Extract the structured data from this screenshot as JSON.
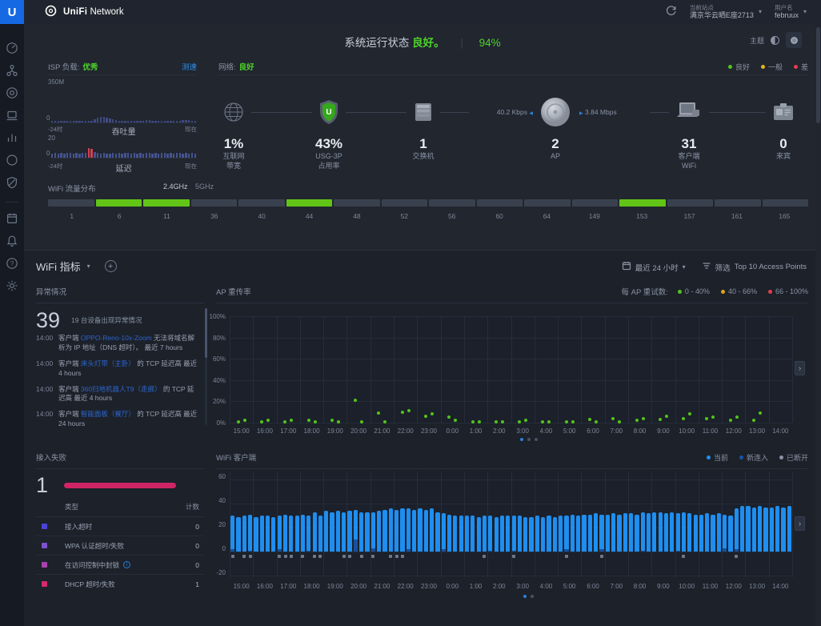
{
  "app": {
    "brand_unifi": "UniFi",
    "brand_network": "Network",
    "site_label": "当前站点",
    "site_value": "满京华云晒E座2713",
    "user_label": "用户名",
    "user_value": "februux"
  },
  "status": {
    "title_prefix": "系统运行状态",
    "title_status": "良好。",
    "score": "94%",
    "theme_label": "主题",
    "isp": {
      "label": "ISP 负载:",
      "value": "优秀",
      "speedtest": "测速",
      "axis_max": "350M",
      "axis_zero": "0",
      "throughput_caption": "吞吐量",
      "latency_axis_max": "20",
      "latency_axis_zero": "0",
      "latency_caption": "延迟",
      "time_start": "-24时",
      "time_end": "现在"
    },
    "network": {
      "label": "网络:",
      "value": "良好",
      "legend": [
        {
          "label": "良好",
          "color": "#52c41a"
        },
        {
          "label": "一般",
          "color": "#e0b61c"
        },
        {
          "label": "差",
          "color": "#e83c50"
        }
      ]
    },
    "nodes": [
      {
        "value": "1%",
        "line1": "互联网",
        "line2": "带宽"
      },
      {
        "value": "43%",
        "line1": "USG-3P",
        "line2": "占用率"
      },
      {
        "value": "1",
        "line1": "交换机",
        "line2": ""
      },
      {
        "value": "2",
        "line1": "AP",
        "line2": ""
      },
      {
        "value": "31",
        "line1": "客户端",
        "line2": "WiFi"
      },
      {
        "value": "0",
        "line1": "来宾",
        "line2": ""
      }
    ],
    "ap_rates": {
      "down": "40.2 Kbps",
      "up": "3.84 Mbps"
    },
    "wifi_dist": {
      "label": "WiFi 流量分布",
      "band24": "2.4GHz",
      "band5": "5GHz",
      "green_color": "#62c416",
      "gray_color": "#3a414e",
      "channels": [
        {
          "ch": "1",
          "green": false
        },
        {
          "ch": "6",
          "green": true
        },
        {
          "ch": "11",
          "green": true
        },
        {
          "ch": "36",
          "green": false
        },
        {
          "ch": "40",
          "green": false
        },
        {
          "ch": "44",
          "green": true
        },
        {
          "ch": "48",
          "green": false
        },
        {
          "ch": "52",
          "green": false
        },
        {
          "ch": "56",
          "green": false
        },
        {
          "ch": "60",
          "green": false
        },
        {
          "ch": "64",
          "green": false
        },
        {
          "ch": "149",
          "green": false
        },
        {
          "ch": "153",
          "green": true
        },
        {
          "ch": "157",
          "green": false
        },
        {
          "ch": "161",
          "green": false
        },
        {
          "ch": "165",
          "green": false
        }
      ]
    }
  },
  "metrics": {
    "title": "WiFi 指标",
    "time_range": "最近 24 小时",
    "filter_label": "筛选",
    "filter_value": "Top 10 Access Points",
    "anomalies": {
      "title": "异常情况",
      "count": "39",
      "caption": "19 台设备出现异常情况",
      "items": [
        {
          "time": "14:00",
          "parts": [
            {
              "t": "客户端 "
            },
            {
              "t": "OPPO-Reno-10x-Zoom",
              "link": true
            },
            {
              "t": " 无法将域名解析为 IP 地址（DNS 超时）。 最近 7 hours"
            }
          ]
        },
        {
          "time": "14:00",
          "parts": [
            {
              "t": "客户端 "
            },
            {
              "t": "床头灯带（主卧）",
              "link": true
            },
            {
              "t": " 的 TCP 延迟高 最近 4 hours"
            }
          ]
        },
        {
          "time": "14:00",
          "parts": [
            {
              "t": "客户端 "
            },
            {
              "t": "360扫地机器人T9（走廊）",
              "link": true
            },
            {
              "t": " 的 TCP 延迟高 最近 4 hours"
            }
          ]
        },
        {
          "time": "14:00",
          "parts": [
            {
              "t": "客户端 "
            },
            {
              "t": "智能面板（餐厅）",
              "link": true
            },
            {
              "t": " 的 TCP 延迟高 最近 24 hours"
            }
          ]
        }
      ]
    },
    "failures": {
      "title": "接入失败",
      "count": "1",
      "col_type": "类型",
      "col_count": "计数",
      "bar_color": "#cf2566",
      "rows": [
        {
          "color": "#4a43d8",
          "label": "接入超时",
          "count": "0",
          "info": false
        },
        {
          "color": "#7b52cc",
          "label": "WPA 认证超时/失败",
          "count": "0",
          "info": false
        },
        {
          "color": "#a843ae",
          "label": "在访问控制中封锁",
          "count": "0",
          "info": true
        },
        {
          "color": "#d62a6e",
          "label": "DHCP 超时/失败",
          "count": "1",
          "info": false
        }
      ]
    },
    "retry": {
      "title": "AP 重传率",
      "legend_label": "每 AP 重试数:",
      "legend": [
        {
          "label": "0 - 40%",
          "color": "#52c41a"
        },
        {
          "label": "40 - 66%",
          "color": "#e0a51c"
        },
        {
          "label": "66 - 100%",
          "color": "#e83c50"
        }
      ]
    },
    "clients": {
      "title": "WiFi 客户端",
      "legend": [
        {
          "label": "当前",
          "color": "#1e8ef0"
        },
        {
          "label": "新连入",
          "color": "#1853a8"
        },
        {
          "label": "已断开",
          "color": "#8a93a5"
        }
      ]
    }
  },
  "chart_data": [
    {
      "type": "bar",
      "name": "isp_throughput_sparkline",
      "ylabel": "350M max",
      "values_pct": [
        4,
        4,
        4,
        4,
        4,
        4,
        4,
        4,
        4,
        4,
        4,
        4,
        4,
        4,
        9,
        13,
        16,
        15,
        13,
        11,
        8,
        6,
        4,
        4,
        4,
        4,
        4,
        4,
        4,
        4,
        5,
        7,
        6,
        4,
        4,
        4,
        4,
        4,
        4,
        4,
        4,
        4,
        5,
        7,
        7,
        6,
        4,
        4
      ],
      "color": "#3f4a85"
    },
    {
      "type": "bar",
      "name": "isp_latency_sparkline",
      "ymax": 20,
      "red_threshold": 10,
      "values": [
        5,
        6,
        5,
        6,
        5,
        6,
        6,
        5,
        6,
        5,
        6,
        6,
        13,
        12,
        7,
        6,
        5,
        6,
        5,
        5,
        6,
        5,
        6,
        5,
        6,
        6,
        5,
        6,
        5,
        6,
        5,
        6,
        6,
        5,
        6,
        5,
        6,
        6,
        5,
        6,
        5,
        6,
        6,
        5,
        6,
        5,
        6,
        5
      ],
      "color": "#475390",
      "red_color": "#d6404e"
    },
    {
      "type": "scatter",
      "name": "ap_retry_rate",
      "ylim": [
        0,
        100
      ],
      "ylabels": [
        "100%",
        "80%",
        "60%",
        "40%",
        "20%",
        "0%"
      ],
      "hours": [
        "15:00",
        "16:00",
        "17:00",
        "18:00",
        "19:00",
        "20:00",
        "21:00",
        "22:00",
        "23:00",
        "0:00",
        "1:00",
        "2:00",
        "3:00",
        "4:00",
        "5:00",
        "6:00",
        "7:00",
        "8:00",
        "9:00",
        "10:00",
        "11:00",
        "12:00",
        "13:00",
        "14:00"
      ],
      "pairs": [
        [
          1,
          2
        ],
        [
          1,
          2
        ],
        [
          1,
          2
        ],
        [
          2,
          1
        ],
        [
          2,
          1
        ],
        [
          21,
          1
        ],
        [
          9,
          1
        ],
        [
          10,
          11
        ],
        [
          6,
          8
        ],
        [
          5,
          2
        ],
        [
          1,
          1
        ],
        [
          1,
          1
        ],
        [
          1,
          2
        ],
        [
          1,
          1
        ],
        [
          1,
          1
        ],
        [
          3,
          1
        ],
        [
          4,
          1
        ],
        [
          2,
          4
        ],
        [
          3,
          6
        ],
        [
          4,
          8
        ],
        [
          4,
          5
        ],
        [
          2,
          5
        ],
        [
          2,
          9
        ],
        []
      ],
      "dot_color": "#52c41a"
    },
    {
      "type": "bar",
      "name": "wifi_clients_per_15min",
      "ylim": [
        -20,
        60
      ],
      "ylabels": [
        "60",
        "40",
        "20",
        "0",
        "-20"
      ],
      "hours": [
        "15:00",
        "16:00",
        "17:00",
        "18:00",
        "19:00",
        "20:00",
        "21:00",
        "22:00",
        "23:00",
        "0:00",
        "1:00",
        "2:00",
        "3:00",
        "4:00",
        "5:00",
        "6:00",
        "7:00",
        "8:00",
        "9:00",
        "10:00",
        "11:00",
        "12:00",
        "13:00",
        "14:00"
      ],
      "values": [
        30,
        29,
        30,
        31,
        29,
        30,
        30,
        29,
        30,
        31,
        30,
        30,
        31,
        30,
        33,
        30,
        34,
        33,
        34,
        33,
        34,
        35,
        33,
        33,
        33,
        34,
        35,
        36,
        35,
        36,
        36,
        35,
        36,
        35,
        36,
        33,
        32,
        31,
        30,
        30,
        30,
        30,
        29,
        30,
        30,
        29,
        30,
        30,
        30,
        30,
        29,
        29,
        30,
        29,
        30,
        29,
        30,
        30,
        31,
        30,
        31,
        31,
        32,
        31,
        31,
        32,
        31,
        32,
        32,
        31,
        33,
        32,
        33,
        33,
        32,
        33,
        32,
        33,
        32,
        31,
        31,
        32,
        31,
        32,
        31,
        30,
        36,
        38,
        38,
        37,
        38,
        37,
        37,
        38,
        37,
        38
      ],
      "new_join": {
        "0": 2,
        "3": 1,
        "8": 2,
        "13": 1,
        "21": 10,
        "24": 3,
        "30": 2,
        "36": 2,
        "44": 1,
        "48": 1,
        "57": 2,
        "63": 2,
        "70": 1,
        "76": 1,
        "84": 3,
        "86": 2
      },
      "disconnect_idx": [
        0,
        2,
        3,
        8,
        9,
        10,
        12,
        14,
        15,
        19,
        20,
        22,
        24,
        27,
        28,
        29,
        43,
        48,
        57,
        63,
        77,
        86
      ],
      "bar_color": "#1e8ef0",
      "join_color": "#17509e"
    }
  ]
}
